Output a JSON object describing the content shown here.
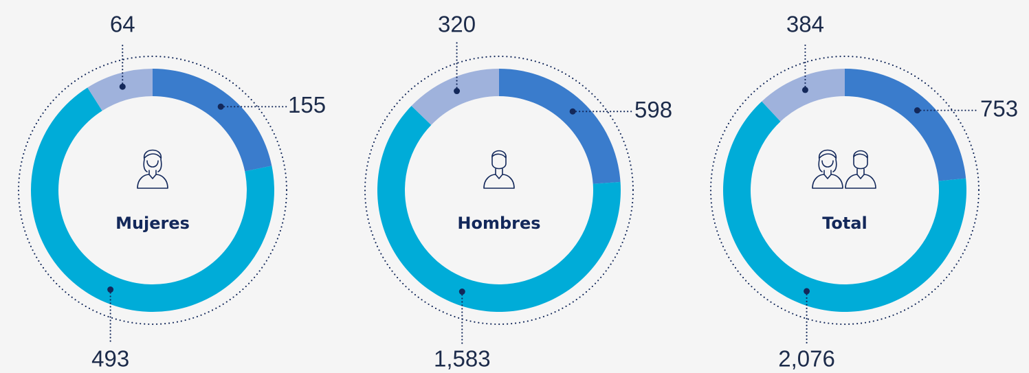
{
  "chart_data": [
    {
      "type": "donut",
      "title": "Mujeres",
      "values": [
        155,
        493,
        64
      ],
      "colors": [
        "#3a7ccc",
        "#00acd8",
        "#9fb2dc"
      ]
    },
    {
      "type": "donut",
      "title": "Hombres",
      "values": [
        598,
        1583,
        320
      ],
      "value_labels": [
        "598",
        "1,583",
        "320"
      ],
      "colors": [
        "#3a7ccc",
        "#00acd8",
        "#9fb2dc"
      ]
    },
    {
      "type": "donut",
      "title": "Total",
      "values": [
        753,
        2076,
        384
      ],
      "value_labels": [
        "753",
        "2,076",
        "384"
      ],
      "colors": [
        "#3a7ccc",
        "#00acd8",
        "#9fb2dc"
      ]
    }
  ]
}
